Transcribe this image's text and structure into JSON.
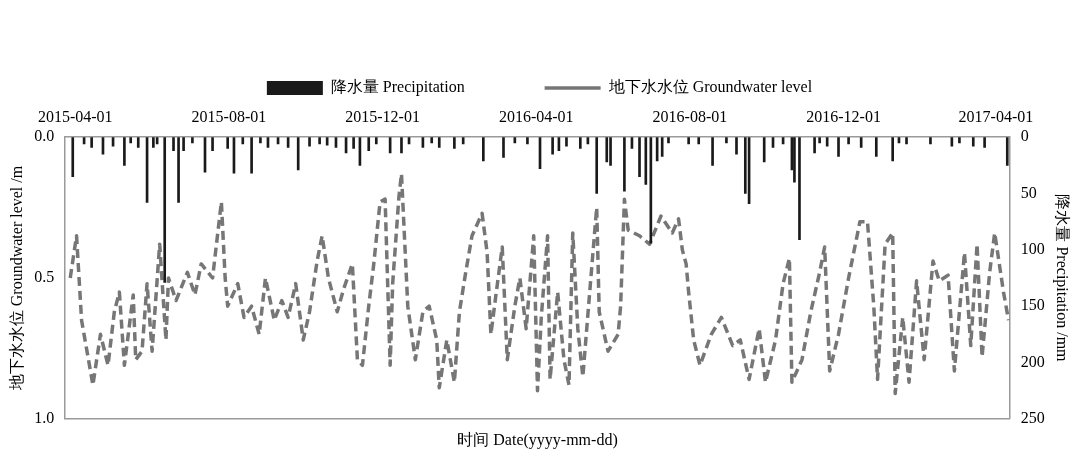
{
  "chart_data": {
    "type": "bar",
    "xlabel": "时间 Date(yyyy-mm-dd)",
    "ylabel": "地下水水位 Groundwater level /m",
    "y2label": "降水量 Precipitation /mm",
    "legend": "top",
    "xlim": [
      "2015-03-24",
      "2017-04-12"
    ],
    "xticks": [
      "2015-04-01",
      "2015-08-01",
      "2015-12-01",
      "2016-04-01",
      "2016-08-01",
      "2016-12-01",
      "2017-04-01"
    ],
    "ylim": [
      1,
      0
    ],
    "yticks": [
      {
        "value": 0,
        "label": "0.0"
      },
      {
        "value": 0.5,
        "label": "0.5"
      },
      {
        "value": 1,
        "label": "1.0"
      }
    ],
    "y2lim": [
      250,
      0
    ],
    "y2ticks": [
      0,
      50,
      100,
      150,
      200,
      250
    ],
    "series": [
      {
        "name": "降水量 Precipitation",
        "axis": "y2",
        "color": "#1a1a1a",
        "x": [
          "2015-03-30",
          "2015-04-08",
          "2015-04-14",
          "2015-04-23",
          "2015-05-01",
          "2015-05-10",
          "2015-05-15",
          "2015-05-21",
          "2015-05-28",
          "2015-06-02",
          "2015-06-05",
          "2015-06-11",
          "2015-06-18",
          "2015-06-22",
          "2015-06-26",
          "2015-07-03",
          "2015-07-13",
          "2015-07-19",
          "2015-07-31",
          "2015-08-05",
          "2015-08-12",
          "2015-08-19",
          "2015-08-26",
          "2015-09-01",
          "2015-09-09",
          "2015-09-17",
          "2015-09-25",
          "2015-10-04",
          "2015-10-12",
          "2015-10-18",
          "2015-10-25",
          "2015-11-02",
          "2015-11-08",
          "2015-11-13",
          "2015-11-20",
          "2015-11-26",
          "2015-12-07",
          "2015-12-16",
          "2015-12-22",
          "2016-01-02",
          "2016-01-09",
          "2016-01-15",
          "2016-01-27",
          "2016-02-03",
          "2016-02-19",
          "2016-03-06",
          "2016-03-15",
          "2016-03-25",
          "2016-04-04",
          "2016-04-14",
          "2016-04-19",
          "2016-04-25",
          "2016-05-06",
          "2016-05-12",
          "2016-05-19",
          "2016-05-27",
          "2016-05-30",
          "2016-06-10",
          "2016-06-16",
          "2016-06-22",
          "2016-06-27",
          "2016-07-01",
          "2016-07-06",
          "2016-07-10",
          "2016-07-15",
          "2016-07-31",
          "2016-08-08",
          "2016-08-19",
          "2016-08-30",
          "2016-09-07",
          "2016-09-14",
          "2016-09-17",
          "2016-09-29",
          "2016-10-06",
          "2016-10-14",
          "2016-10-21",
          "2016-10-23",
          "2016-10-27",
          "2016-11-08",
          "2016-11-12",
          "2016-11-18",
          "2016-11-27",
          "2016-12-05",
          "2016-12-15",
          "2016-12-27",
          "2017-01-09",
          "2017-01-14",
          "2017-01-20",
          "2017-02-08",
          "2017-02-25",
          "2017-03-03",
          "2017-03-14",
          "2017-03-23",
          "2017-04-10"
        ],
        "values": [
          35,
          6,
          9,
          15,
          8,
          25,
          5,
          9,
          58,
          9,
          6,
          129,
          12,
          58,
          12,
          5,
          31,
          12,
          10,
          32,
          6,
          32,
          5,
          9,
          6,
          9,
          29,
          8,
          6,
          7,
          9,
          14,
          10,
          25,
          12,
          6,
          14,
          14,
          6,
          9,
          5,
          9,
          10,
          6,
          21,
          18,
          5,
          6,
          28,
          15,
          12,
          8,
          10,
          6,
          50,
          22,
          25,
          48,
          10,
          35,
          42,
          94,
          21,
          17,
          5,
          6,
          6,
          25,
          5,
          15,
          50,
          59,
          22,
          9,
          6,
          29,
          40,
          91,
          14,
          5,
          8,
          17,
          6,
          9,
          17,
          21,
          5,
          6,
          6,
          8,
          5,
          8,
          9,
          25
        ]
      },
      {
        "name": "地下水水位 Groundwater level",
        "type": "line",
        "axis": "y",
        "color": "#767676",
        "line_style": "dashed",
        "x": [
          "2015-03-28",
          "2015-04-02",
          "2015-04-06",
          "2015-04-15",
          "2015-04-21",
          "2015-04-27",
          "2015-05-02",
          "2015-05-06",
          "2015-05-10",
          "2015-05-17",
          "2015-05-19",
          "2015-05-24",
          "2015-05-28",
          "2015-06-01",
          "2015-06-07",
          "2015-06-12",
          "2015-06-14",
          "2015-06-20",
          "2015-06-29",
          "2015-07-05",
          "2015-07-10",
          "2015-07-19",
          "2015-07-26",
          "2015-07-29",
          "2015-07-31",
          "2015-08-08",
          "2015-08-13",
          "2015-08-19",
          "2015-08-25",
          "2015-08-30",
          "2015-09-06",
          "2015-09-12",
          "2015-09-17",
          "2015-09-23",
          "2015-09-29",
          "2015-10-04",
          "2015-10-10",
          "2015-10-14",
          "2015-10-19",
          "2015-10-26",
          "2015-10-31",
          "2015-11-07",
          "2015-11-11",
          "2015-11-15",
          "2015-11-20",
          "2015-11-24",
          "2015-11-29",
          "2015-12-03",
          "2015-12-07",
          "2015-12-09",
          "2015-12-14",
          "2015-12-16",
          "2015-12-21",
          "2015-12-27",
          "2016-01-02",
          "2016-01-07",
          "2016-01-13",
          "2016-01-15",
          "2016-01-21",
          "2016-01-27",
          "2016-01-31",
          "2016-02-05",
          "2016-02-10",
          "2016-02-18",
          "2016-02-22",
          "2016-02-25",
          "2016-02-29",
          "2016-03-05",
          "2016-03-09",
          "2016-03-15",
          "2016-03-19",
          "2016-03-24",
          "2016-03-30",
          "2016-04-02",
          "2016-04-05",
          "2016-04-10",
          "2016-04-12",
          "2016-04-18",
          "2016-04-23",
          "2016-04-27",
          "2016-04-30",
          "2016-05-04",
          "2016-05-08",
          "2016-05-14",
          "2016-05-19",
          "2016-05-21",
          "2016-05-28",
          "2016-06-05",
          "2016-06-07",
          "2016-06-10",
          "2016-06-13",
          "2016-06-22",
          "2016-06-30",
          "2016-07-09",
          "2016-07-18",
          "2016-07-23",
          "2016-07-26",
          "2016-07-29",
          "2016-07-31",
          "2016-08-04",
          "2016-08-09",
          "2016-08-18",
          "2016-08-26",
          "2016-09-04",
          "2016-09-10",
          "2016-09-17",
          "2016-09-25",
          "2016-09-30",
          "2016-10-08",
          "2016-10-14",
          "2016-10-19",
          "2016-10-21",
          "2016-10-29",
          "2016-11-05",
          "2016-11-12",
          "2016-11-16",
          "2016-11-20",
          "2016-11-27",
          "2016-12-05",
          "2016-12-14",
          "2016-12-20",
          "2016-12-25",
          "2016-12-28",
          "2017-01-03",
          "2017-01-09",
          "2017-01-11",
          "2017-01-17",
          "2017-01-22",
          "2017-01-28",
          "2017-02-03",
          "2017-02-10",
          "2017-02-15",
          "2017-02-22",
          "2017-02-27",
          "2017-03-07",
          "2017-03-12",
          "2017-03-17",
          "2017-03-21",
          "2017-03-27",
          "2017-03-31",
          "2017-04-07",
          "2017-04-11"
        ],
        "values": [
          0.5,
          0.35,
          0.65,
          0.88,
          0.7,
          0.81,
          0.62,
          0.55,
          0.81,
          0.56,
          0.79,
          0.76,
          0.52,
          0.76,
          0.38,
          0.72,
          0.5,
          0.58,
          0.48,
          0.56,
          0.45,
          0.5,
          0.23,
          0.5,
          0.6,
          0.52,
          0.64,
          0.6,
          0.7,
          0.5,
          0.65,
          0.58,
          0.64,
          0.52,
          0.72,
          0.62,
          0.44,
          0.35,
          0.5,
          0.62,
          0.54,
          0.45,
          0.79,
          0.81,
          0.6,
          0.45,
          0.23,
          0.22,
          0.81,
          0.52,
          0.21,
          0.13,
          0.6,
          0.79,
          0.62,
          0.6,
          0.72,
          0.89,
          0.72,
          0.87,
          0.62,
          0.48,
          0.35,
          0.27,
          0.41,
          0.7,
          0.56,
          0.39,
          0.79,
          0.6,
          0.5,
          0.68,
          0.35,
          0.9,
          0.64,
          0.35,
          0.86,
          0.55,
          0.79,
          0.88,
          0.34,
          0.68,
          0.85,
          0.52,
          0.25,
          0.62,
          0.76,
          0.7,
          0.6,
          0.22,
          0.33,
          0.35,
          0.38,
          0.28,
          0.34,
          0.29,
          0.4,
          0.45,
          0.55,
          0.72,
          0.81,
          0.7,
          0.64,
          0.74,
          0.72,
          0.86,
          0.68,
          0.87,
          0.72,
          0.52,
          0.43,
          0.87,
          0.79,
          0.62,
          0.48,
          0.39,
          0.83,
          0.7,
          0.5,
          0.3,
          0.3,
          0.6,
          0.86,
          0.38,
          0.34,
          0.91,
          0.64,
          0.87,
          0.51,
          0.79,
          0.44,
          0.51,
          0.49,
          0.83,
          0.41,
          0.74,
          0.38,
          0.78,
          0.48,
          0.34,
          0.55,
          0.65
        ]
      }
    ]
  }
}
